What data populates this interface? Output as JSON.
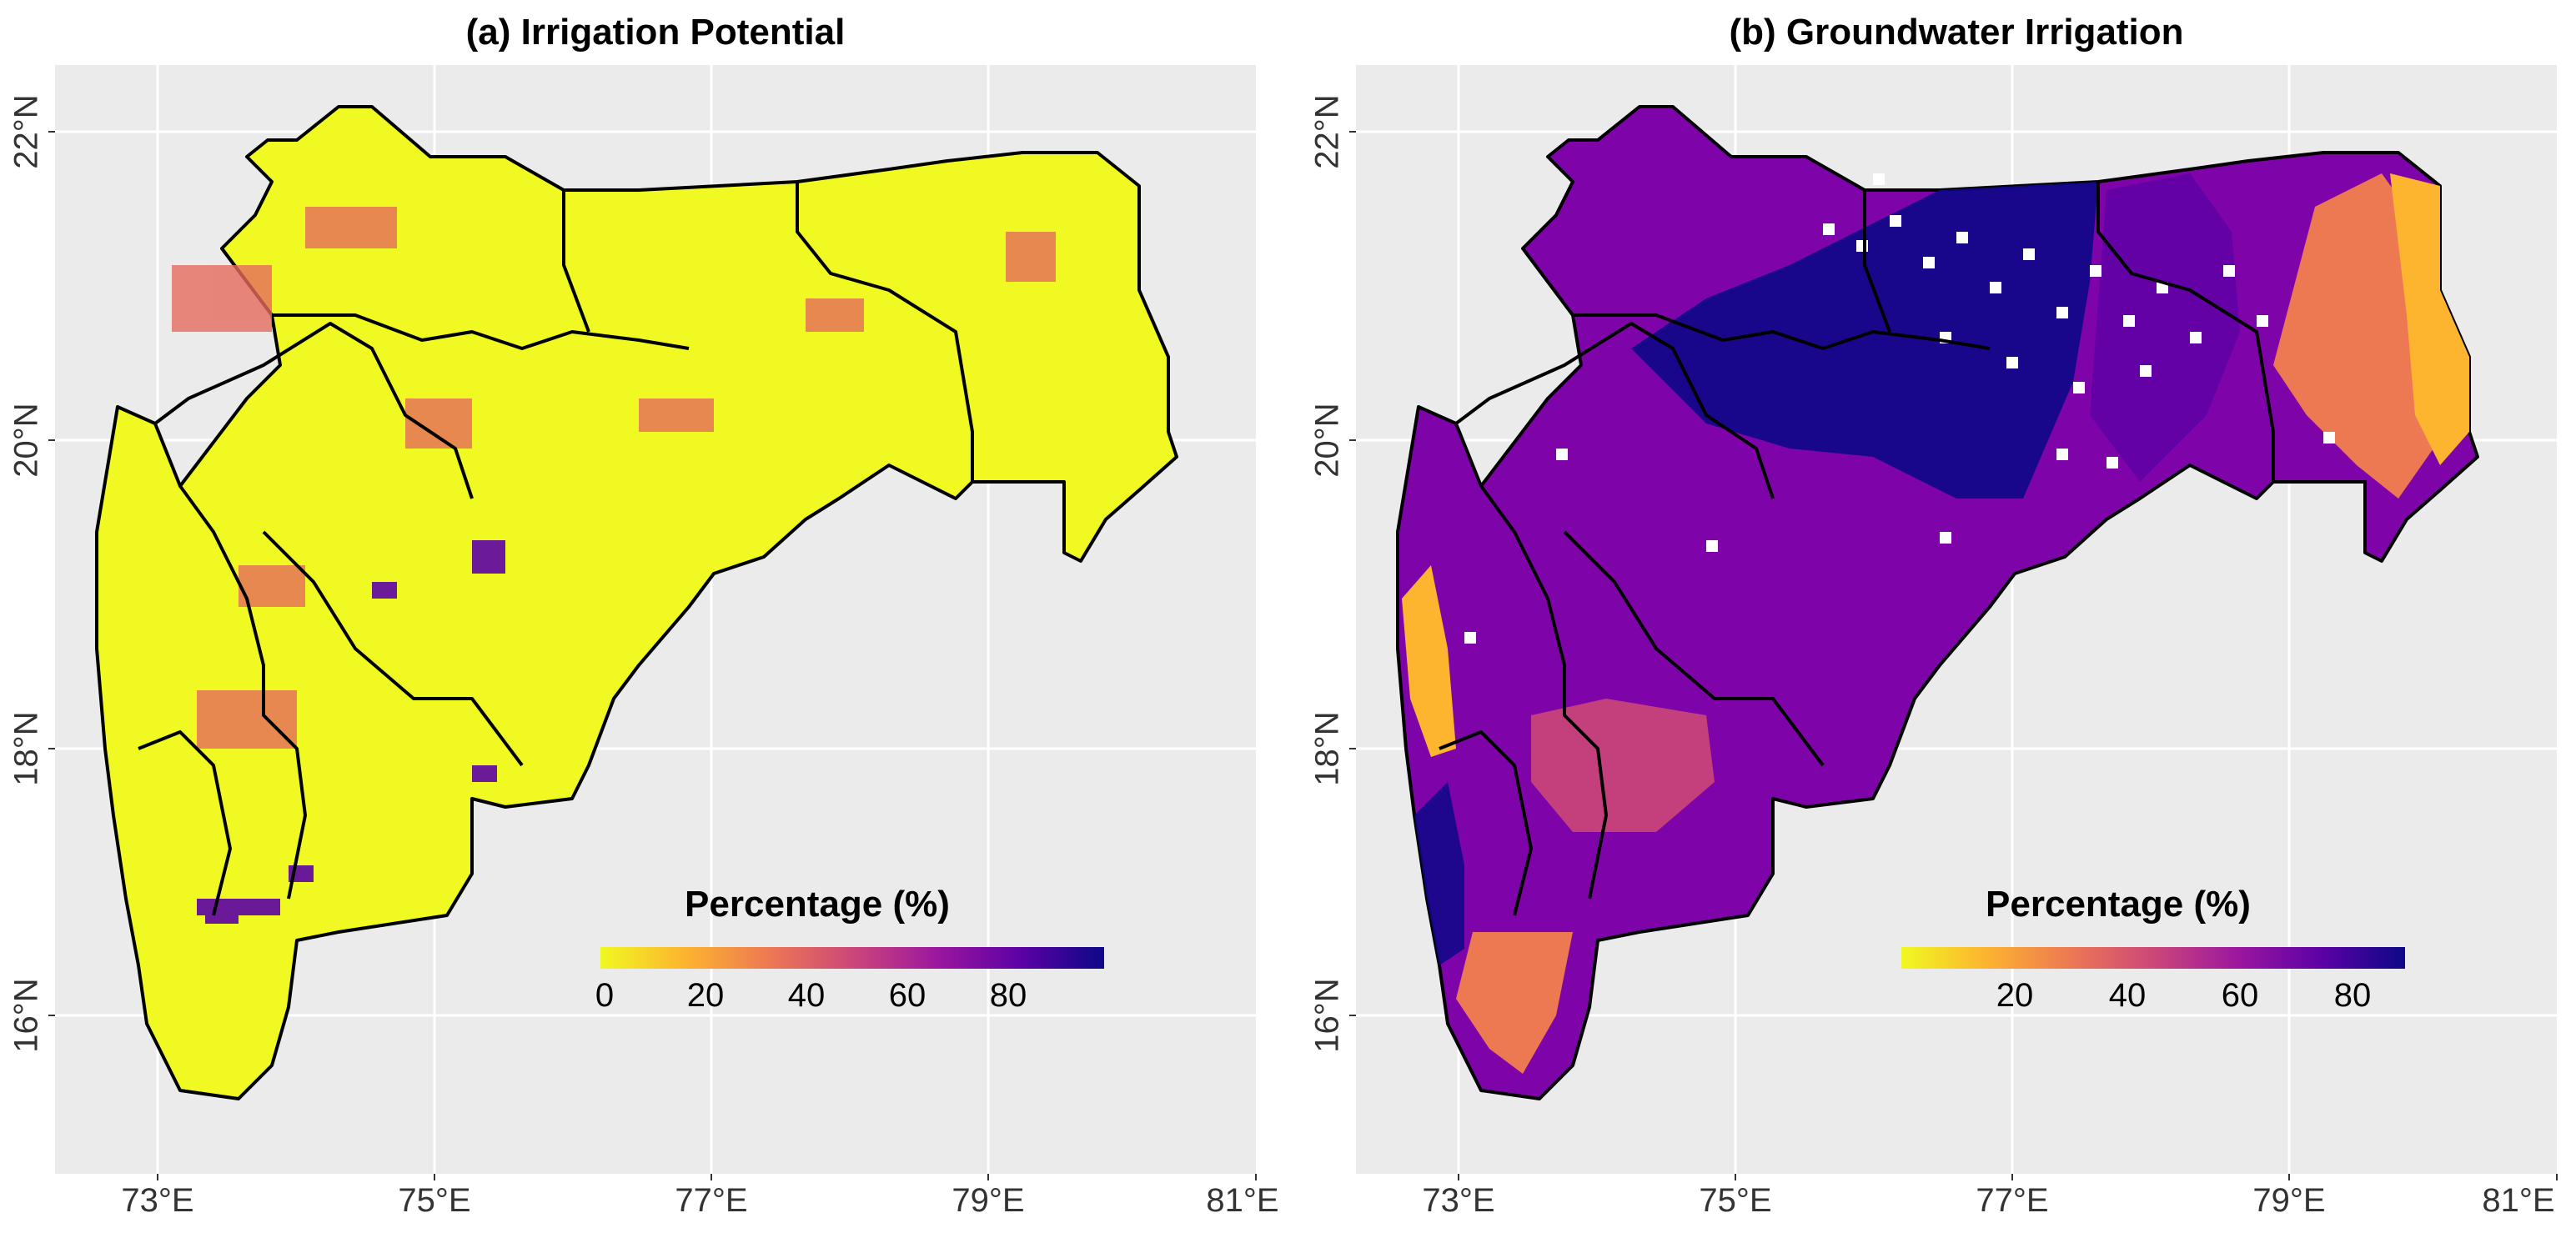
{
  "panels": [
    {
      "title": "(a) Irrigation Potential",
      "legend_title": "Percentage (%)",
      "legend_ticks": [
        "0",
        "20",
        "40",
        "60",
        "80"
      ],
      "dominant_color": "#f0f921"
    },
    {
      "title": "(b) Groundwater Irrigation",
      "legend_title": "Percentage (%)",
      "legend_ticks": [
        "20",
        "40",
        "60",
        "80"
      ],
      "dominant_color": "#5c01a6"
    }
  ],
  "axes": {
    "x_ticks": [
      "73°E",
      "75°E",
      "77°E",
      "79°E",
      "81°E"
    ],
    "y_ticks": [
      "16°N",
      "18°N",
      "20°N",
      "22°N"
    ]
  },
  "colors": {
    "panel_background": "#ebebeb",
    "gridline": "#ffffff",
    "boundary": "#000000",
    "scale_low": "#f0f921",
    "scale_high": "#0d0887"
  }
}
